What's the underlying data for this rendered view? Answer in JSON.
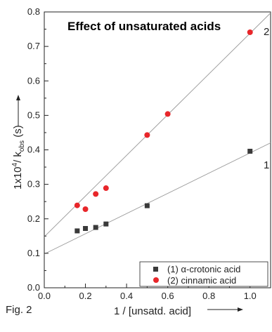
{
  "chart_data": {
    "type": "scatter",
    "title": "Effect of unsaturated acids",
    "xlabel": "1 / [unsatd. acid]",
    "ylabel_main": "1x10",
    "ylabel_sup": "4",
    "ylabel_rest": "/ k",
    "ylabel_sub": "obs",
    "ylabel_unit": " (s)",
    "xlim": [
      0.0,
      1.1
    ],
    "ylim": [
      0.0,
      0.8
    ],
    "xticks": [
      "0.0",
      "0.2",
      "0.4",
      "0.6",
      "0.8",
      "1.0"
    ],
    "yticks": [
      "0.0",
      "0.1",
      "0.2",
      "0.3",
      "0.4",
      "0.5",
      "0.6",
      "0.7",
      "0.8"
    ],
    "legend_position": "bottom-right",
    "grid": false,
    "series": [
      {
        "name": "(1) α-crotonic acid",
        "line_label": "1",
        "marker": "square",
        "color": "#3a3a3a",
        "x": [
          0.16,
          0.2,
          0.25,
          0.3,
          0.5,
          1.0
        ],
        "y": [
          0.165,
          0.172,
          0.175,
          0.185,
          0.238,
          0.396
        ],
        "fit": {
          "intercept": 0.098,
          "slope": 0.293
        }
      },
      {
        "name": "(2) cinnamic acid",
        "line_label": "2",
        "marker": "circle",
        "color": "#e8262a",
        "x": [
          0.16,
          0.2,
          0.25,
          0.3,
          0.5,
          0.6,
          1.0
        ],
        "y": [
          0.239,
          0.228,
          0.272,
          0.289,
          0.443,
          0.504,
          0.741
        ],
        "fit": {
          "intercept": 0.148,
          "slope": 0.59
        }
      }
    ],
    "annotations": {
      "fig_label": "Fig. 2"
    }
  }
}
